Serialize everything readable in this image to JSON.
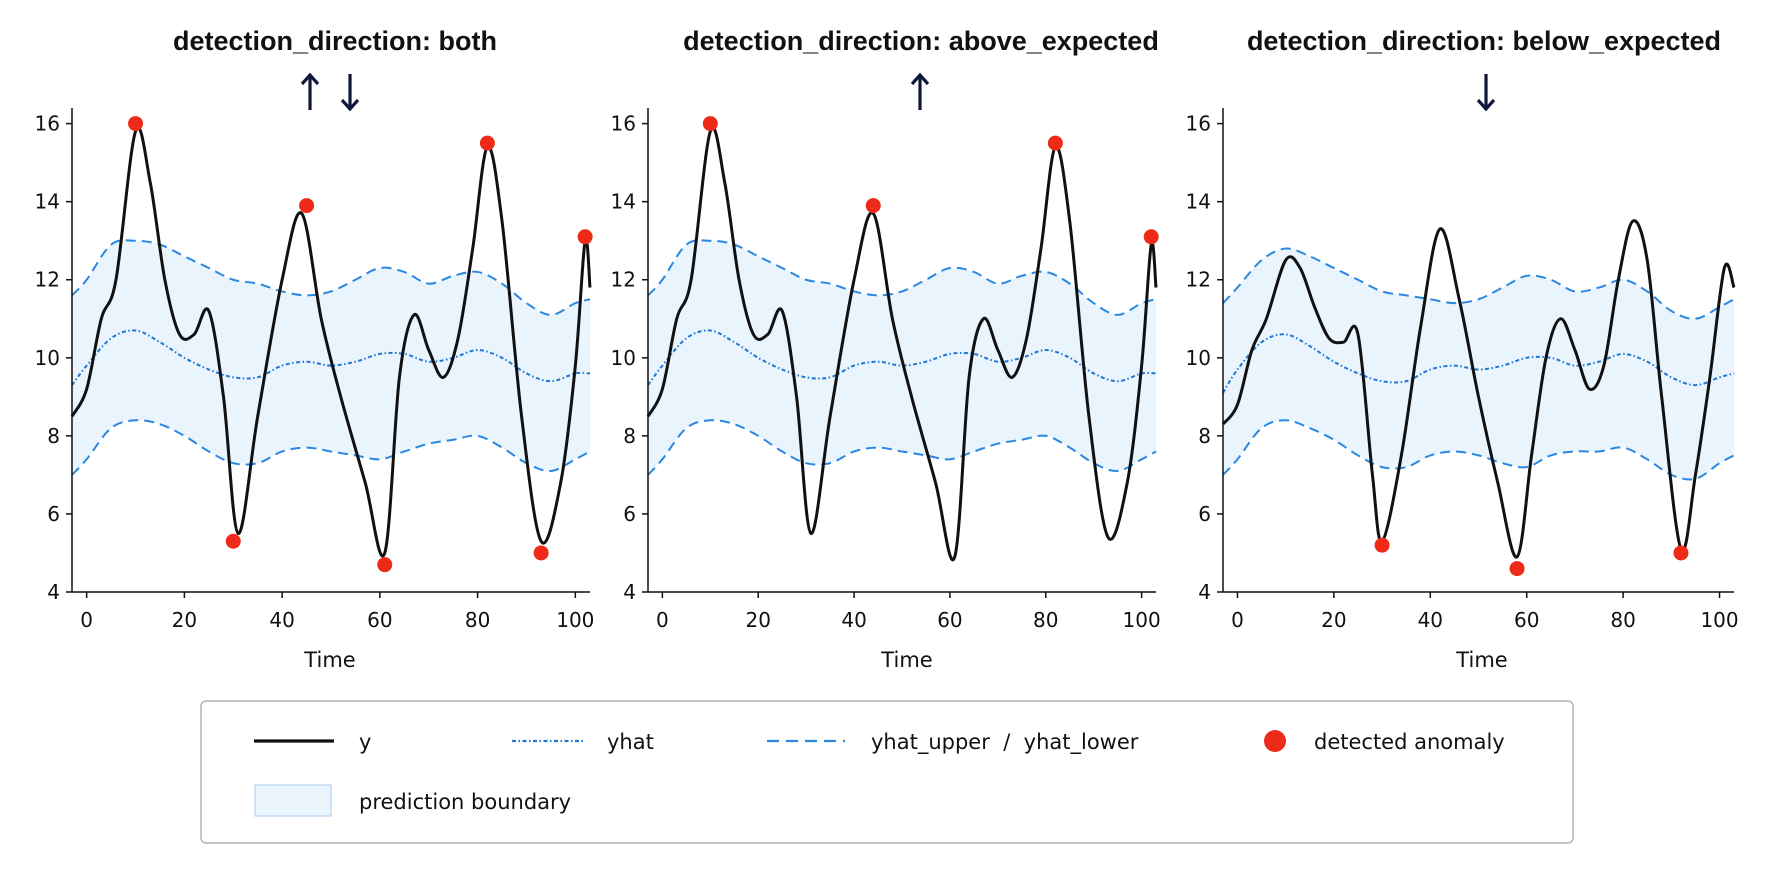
{
  "chart_data": [
    {
      "type": "line",
      "title": "detection_direction: both",
      "direction_icons": [
        "up-arrow",
        "down-arrow"
      ],
      "xlabel": "Time",
      "ylabel": "",
      "xlim": [
        -3,
        103
      ],
      "ylim": [
        4,
        16.4
      ],
      "xticks": [
        0,
        20,
        40,
        60,
        80,
        100
      ],
      "yticks": [
        4,
        6,
        8,
        10,
        12,
        14,
        16
      ],
      "series": [
        {
          "name": "y",
          "x": [
            -3,
            0,
            3,
            6,
            10,
            13,
            16,
            19,
            22,
            25,
            28,
            31,
            35,
            40,
            44,
            48,
            52,
            57,
            61,
            64,
            67,
            70,
            73,
            76,
            79,
            82,
            85,
            89,
            93,
            97,
            100,
            102,
            103
          ],
          "y": [
            8.5,
            9.2,
            11.0,
            12.0,
            15.8,
            14.5,
            12.0,
            10.6,
            10.6,
            11.2,
            9.0,
            5.5,
            8.5,
            12.0,
            13.7,
            11.0,
            9.0,
            6.8,
            5.0,
            9.5,
            11.1,
            10.2,
            9.5,
            10.5,
            12.8,
            15.4,
            13.5,
            8.5,
            5.3,
            6.8,
            9.8,
            13.0,
            11.8
          ]
        },
        {
          "name": "yhat",
          "x": [
            -3,
            0,
            5,
            10,
            15,
            20,
            25,
            30,
            35,
            40,
            45,
            50,
            55,
            60,
            65,
            70,
            75,
            80,
            85,
            90,
            95,
            100,
            103
          ],
          "y": [
            9.3,
            9.8,
            10.5,
            10.7,
            10.4,
            10.0,
            9.7,
            9.5,
            9.5,
            9.8,
            9.9,
            9.8,
            9.9,
            10.1,
            10.1,
            9.9,
            10.0,
            10.2,
            10.0,
            9.6,
            9.4,
            9.6,
            9.6
          ]
        },
        {
          "name": "yhat_upper",
          "x": [
            -3,
            0,
            5,
            10,
            15,
            20,
            25,
            30,
            35,
            40,
            45,
            50,
            55,
            60,
            65,
            70,
            75,
            80,
            85,
            90,
            95,
            100,
            103
          ],
          "y": [
            11.6,
            12.0,
            12.9,
            13.0,
            12.9,
            12.6,
            12.3,
            12.0,
            11.9,
            11.7,
            11.6,
            11.7,
            12.0,
            12.3,
            12.2,
            11.9,
            12.1,
            12.2,
            11.9,
            11.4,
            11.1,
            11.4,
            11.5
          ]
        },
        {
          "name": "yhat_lower",
          "x": [
            -3,
            0,
            5,
            10,
            15,
            20,
            25,
            30,
            35,
            40,
            45,
            50,
            55,
            60,
            65,
            70,
            75,
            80,
            85,
            90,
            95,
            100,
            103
          ],
          "y": [
            7.0,
            7.4,
            8.2,
            8.4,
            8.3,
            8.0,
            7.6,
            7.3,
            7.3,
            7.6,
            7.7,
            7.6,
            7.5,
            7.4,
            7.6,
            7.8,
            7.9,
            8.0,
            7.7,
            7.3,
            7.1,
            7.4,
            7.6
          ]
        }
      ],
      "anomalies": {
        "x": [
          10,
          30,
          45,
          61,
          82,
          93,
          102
        ],
        "y": [
          16.0,
          5.3,
          13.9,
          4.7,
          15.5,
          5.0,
          13.1
        ]
      }
    },
    {
      "type": "line",
      "title": "detection_direction: above_expected",
      "direction_icons": [
        "up-arrow"
      ],
      "xlabel": "Time",
      "ylabel": "",
      "xlim": [
        -3,
        103
      ],
      "ylim": [
        4,
        16.4
      ],
      "xticks": [
        0,
        20,
        40,
        60,
        80,
        100
      ],
      "yticks": [
        4,
        6,
        8,
        10,
        12,
        14,
        16
      ],
      "series": [
        {
          "name": "y",
          "x": [
            -3,
            0,
            3,
            6,
            10,
            13,
            16,
            19,
            22,
            25,
            28,
            31,
            35,
            40,
            44,
            48,
            52,
            57,
            61,
            64,
            67,
            70,
            73,
            76,
            79,
            82,
            85,
            89,
            93,
            97,
            100,
            102,
            103
          ],
          "y": [
            8.5,
            9.2,
            11.0,
            12.0,
            15.8,
            14.5,
            12.0,
            10.6,
            10.6,
            11.2,
            9.0,
            5.5,
            8.5,
            12.0,
            13.7,
            11.0,
            9.0,
            6.8,
            4.9,
            9.5,
            11.0,
            10.2,
            9.5,
            10.5,
            12.8,
            15.4,
            13.5,
            8.5,
            5.4,
            6.8,
            9.8,
            12.9,
            11.8
          ]
        },
        {
          "name": "yhat",
          "x": [
            -3,
            0,
            5,
            10,
            15,
            20,
            25,
            30,
            35,
            40,
            45,
            50,
            55,
            60,
            65,
            70,
            75,
            80,
            85,
            90,
            95,
            100,
            103
          ],
          "y": [
            9.3,
            9.8,
            10.5,
            10.7,
            10.4,
            10.0,
            9.7,
            9.5,
            9.5,
            9.8,
            9.9,
            9.8,
            9.9,
            10.1,
            10.1,
            9.9,
            10.0,
            10.2,
            10.0,
            9.6,
            9.4,
            9.6,
            9.6
          ]
        },
        {
          "name": "yhat_upper",
          "x": [
            -3,
            0,
            5,
            10,
            15,
            20,
            25,
            30,
            35,
            40,
            45,
            50,
            55,
            60,
            65,
            70,
            75,
            80,
            85,
            90,
            95,
            100,
            103
          ],
          "y": [
            11.6,
            12.0,
            12.9,
            13.0,
            12.9,
            12.6,
            12.3,
            12.0,
            11.9,
            11.7,
            11.6,
            11.7,
            12.0,
            12.3,
            12.2,
            11.9,
            12.1,
            12.2,
            11.9,
            11.4,
            11.1,
            11.4,
            11.5
          ]
        },
        {
          "name": "yhat_lower",
          "x": [
            -3,
            0,
            5,
            10,
            15,
            20,
            25,
            30,
            35,
            40,
            45,
            50,
            55,
            60,
            65,
            70,
            75,
            80,
            85,
            90,
            95,
            100,
            103
          ],
          "y": [
            7.0,
            7.4,
            8.2,
            8.4,
            8.3,
            8.0,
            7.6,
            7.3,
            7.3,
            7.6,
            7.7,
            7.6,
            7.5,
            7.4,
            7.6,
            7.8,
            7.9,
            8.0,
            7.7,
            7.3,
            7.1,
            7.4,
            7.6
          ]
        }
      ],
      "anomalies": {
        "x": [
          10,
          44,
          82,
          102
        ],
        "y": [
          16.0,
          13.9,
          15.5,
          13.1
        ]
      }
    },
    {
      "type": "line",
      "title": "detection_direction: below_expected",
      "direction_icons": [
        "down-arrow"
      ],
      "xlabel": "Time",
      "ylabel": "",
      "xlim": [
        -3,
        103
      ],
      "ylim": [
        4,
        16.4
      ],
      "xticks": [
        0,
        20,
        40,
        60,
        80,
        100
      ],
      "yticks": [
        4,
        6,
        8,
        10,
        12,
        14,
        16
      ],
      "series": [
        {
          "name": "y",
          "x": [
            -3,
            0,
            3,
            6,
            10,
            13,
            16,
            19,
            22,
            25,
            28,
            30,
            34,
            38,
            42,
            46,
            50,
            54,
            58,
            61,
            64,
            67,
            70,
            73,
            76,
            79,
            82,
            85,
            88,
            92,
            95,
            98,
            101,
            103
          ],
          "y": [
            8.3,
            8.8,
            10.2,
            11.0,
            12.5,
            12.3,
            11.3,
            10.5,
            10.4,
            10.6,
            7.0,
            5.3,
            7.5,
            10.8,
            13.3,
            11.5,
            9.0,
            6.8,
            4.9,
            7.5,
            10.0,
            11.0,
            10.2,
            9.2,
            9.8,
            12.0,
            13.5,
            12.5,
            9.0,
            5.1,
            7.0,
            9.5,
            12.3,
            11.8
          ]
        },
        {
          "name": "yhat",
          "x": [
            -3,
            0,
            5,
            10,
            15,
            20,
            25,
            30,
            35,
            40,
            45,
            50,
            55,
            60,
            65,
            70,
            75,
            80,
            85,
            90,
            95,
            100,
            103
          ],
          "y": [
            9.1,
            9.7,
            10.4,
            10.6,
            10.3,
            9.9,
            9.6,
            9.4,
            9.4,
            9.7,
            9.8,
            9.7,
            9.8,
            10.0,
            10.0,
            9.8,
            9.9,
            10.1,
            9.9,
            9.5,
            9.3,
            9.5,
            9.6
          ]
        },
        {
          "name": "yhat_upper",
          "x": [
            -3,
            0,
            5,
            10,
            15,
            20,
            25,
            30,
            35,
            40,
            45,
            50,
            55,
            60,
            65,
            70,
            75,
            80,
            85,
            90,
            95,
            100,
            103
          ],
          "y": [
            11.4,
            11.8,
            12.5,
            12.8,
            12.6,
            12.3,
            12.0,
            11.7,
            11.6,
            11.5,
            11.4,
            11.5,
            11.8,
            12.1,
            12.0,
            11.7,
            11.8,
            12.0,
            11.7,
            11.2,
            11.0,
            11.3,
            11.5
          ]
        },
        {
          "name": "yhat_lower",
          "x": [
            -3,
            0,
            5,
            10,
            15,
            20,
            25,
            30,
            35,
            40,
            45,
            50,
            55,
            60,
            65,
            70,
            75,
            80,
            85,
            90,
            95,
            100,
            103
          ],
          "y": [
            7.0,
            7.4,
            8.2,
            8.4,
            8.2,
            7.9,
            7.5,
            7.2,
            7.2,
            7.5,
            7.6,
            7.5,
            7.3,
            7.2,
            7.5,
            7.6,
            7.6,
            7.7,
            7.4,
            7.0,
            6.9,
            7.3,
            7.5
          ]
        }
      ],
      "anomalies": {
        "x": [
          30,
          58,
          92
        ],
        "y": [
          5.2,
          4.6,
          5.0
        ]
      }
    }
  ],
  "legend": {
    "items": [
      {
        "label": "y",
        "style": "solid-black-line"
      },
      {
        "label": "yhat",
        "style": "dotted-blue-line"
      },
      {
        "label": "yhat_upper  /  yhat_lower",
        "style": "dashed-blue-line"
      },
      {
        "label": "detected anomaly",
        "style": "red-dot"
      },
      {
        "label": "prediction boundary",
        "style": "light-blue-band"
      }
    ]
  },
  "colors": {
    "y": "#111111",
    "yhat": "#1f77d4",
    "bounds": "#2a88e0",
    "band": "#eaf4fd",
    "anomaly": "#ee2b18",
    "arrow": "#0f1838"
  }
}
